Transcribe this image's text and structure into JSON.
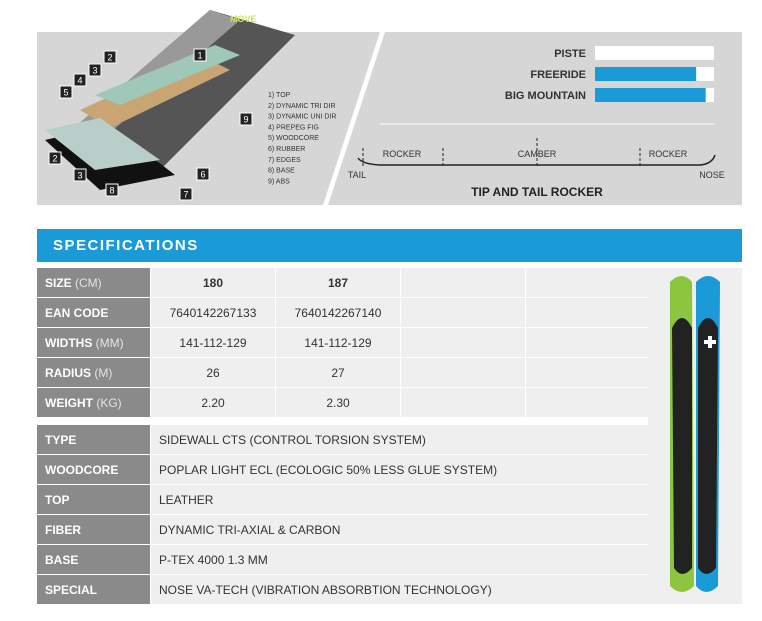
{
  "diagram": {
    "badges": [
      "2",
      "3",
      "4",
      "5",
      "1",
      "2",
      "3",
      "8",
      "7",
      "6",
      "9"
    ],
    "layers": [
      "1) TOP",
      "2) DYNAMIC TRI DIR",
      "3) DYNAMIC UNI DIR",
      "4) PREPEG FIG",
      "5) WOODCORE",
      "6) RUBBER",
      "7) EDGES",
      "8) BASE",
      "9) ABS"
    ]
  },
  "ratings": {
    "xlim": [
      0,
      100
    ],
    "items": [
      {
        "label": "PISTE",
        "value": 0
      },
      {
        "label": "FREERIDE",
        "value": 85
      },
      {
        "label": "BIG MOUNTAIN",
        "value": 93
      }
    ]
  },
  "profile": {
    "title": "TIP AND TAIL ROCKER",
    "zones": [
      "ROCKER",
      "CAMBER",
      "ROCKER"
    ],
    "tail": "TAIL",
    "nose": "NOSE"
  },
  "specs": {
    "title": "SPECIFICATIONS",
    "sizes": [
      {
        "label": "SIZE",
        "unit": "(CM)",
        "values": [
          "180",
          "187"
        ]
      },
      {
        "label": "EAN CODE",
        "values": [
          "7640142267133",
          "7640142267140"
        ]
      },
      {
        "label": "WIDTHS",
        "unit": "(MM)",
        "values": [
          "141-112-129",
          "141-112-129"
        ]
      },
      {
        "label": "RADIUS",
        "unit": "(M)",
        "values": [
          "26",
          "27"
        ]
      },
      {
        "label": "WEIGHT",
        "unit": "(KG)",
        "values": [
          "2.20",
          "2.30"
        ]
      }
    ],
    "features": [
      {
        "label": "TYPE",
        "value": "SIDEWALL CTS (CONTROL TORSION SYSTEM)"
      },
      {
        "label": "WOODCORE",
        "value": "POPLAR LIGHT ECL (ECOLOGIC 50% LESS GLUE SYSTEM)"
      },
      {
        "label": "TOP",
        "value": "LEATHER"
      },
      {
        "label": "FIBER",
        "value": "DYNAMIC TRI-AXIAL & CARBON"
      },
      {
        "label": "BASE",
        "value": "P-TEX 4000 1.3 MM"
      },
      {
        "label": "SPECIAL",
        "value": "NOSE VA-TECH (VIBRATION ABSORBTION TECHNOLOGY)"
      }
    ]
  }
}
